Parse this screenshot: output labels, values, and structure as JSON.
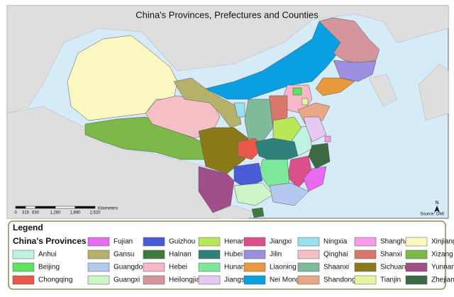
{
  "title": "China's Provinces, Prefectures and Counties",
  "scale": {
    "ticks": [
      "0",
      "315",
      "630",
      "1,260",
      "1,890",
      "2,520"
    ],
    "unit": "Kilometers"
  },
  "north": "N",
  "source": "Source: GMI",
  "legend": {
    "title": "Legend",
    "subtitle": "China's Provinces",
    "items": [
      {
        "name": "Anhui",
        "color": "#bff2e2"
      },
      {
        "name": "Beijing",
        "color": "#5de35d"
      },
      {
        "name": "Chongqing",
        "color": "#e8584b"
      },
      {
        "name": "Fujian",
        "color": "#e66bf0"
      },
      {
        "name": "Gansu",
        "color": "#b5b06a"
      },
      {
        "name": "Guangdong",
        "color": "#b4c8f0"
      },
      {
        "name": "Guangxi",
        "color": "#cdf5c8"
      },
      {
        "name": "Guizhou",
        "color": "#4a5bd8"
      },
      {
        "name": "Hainan",
        "color": "#3e7a3e"
      },
      {
        "name": "Hebei",
        "color": "#f7b8c8"
      },
      {
        "name": "Heilongjiang",
        "color": "#d4959d"
      },
      {
        "name": "Henan",
        "color": "#b8e85a"
      },
      {
        "name": "Hubei",
        "color": "#2f7f7a"
      },
      {
        "name": "Hunan",
        "color": "#7de89a"
      },
      {
        "name": "Jiangsu",
        "color": "#e6c8f5"
      },
      {
        "name": "Jiangxi",
        "color": "#d9508a"
      },
      {
        "name": "Jilin",
        "color": "#9d8fe0"
      },
      {
        "name": "Liaoning",
        "color": "#e89a3d"
      },
      {
        "name": "Nei Mongol",
        "color": "#0a9fe0"
      },
      {
        "name": "Ningxia",
        "color": "#9ae0f0"
      },
      {
        "name": "Qinghai",
        "color": "#f5c0c5"
      },
      {
        "name": "Shaanxi",
        "color": "#7fba9a"
      },
      {
        "name": "Shandong",
        "color": "#e8a887"
      },
      {
        "name": "Shanghai",
        "color": "#f59be8"
      },
      {
        "name": "Shanxi",
        "color": "#d9786a"
      },
      {
        "name": "Sichuan",
        "color": "#8a7a1a"
      },
      {
        "name": "Tianjin",
        "color": "#e8f5a0"
      },
      {
        "name": "Xinjiang",
        "color": "#fbf7c0"
      },
      {
        "name": "Xizang",
        "color": "#7cb84a"
      },
      {
        "name": "Yunnan",
        "color": "#a04e8a"
      },
      {
        "name": "Zhejiang",
        "color": "#3d6a45"
      }
    ]
  }
}
